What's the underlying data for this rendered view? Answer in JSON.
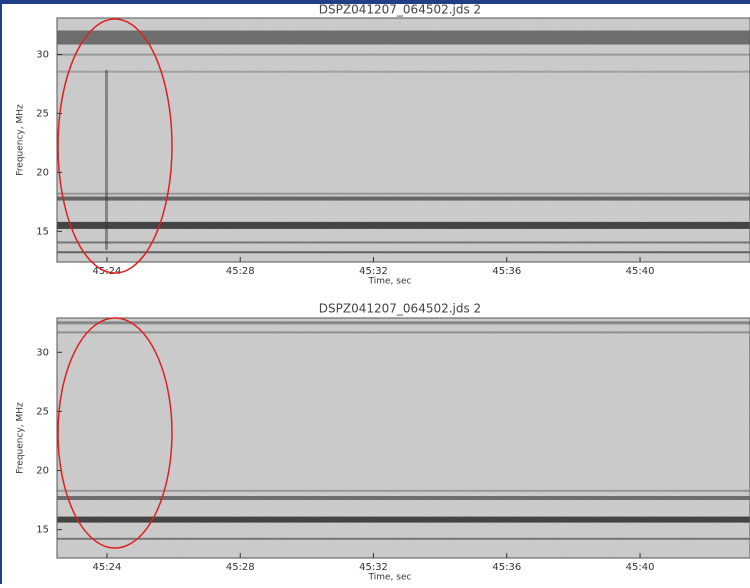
{
  "chart_data": [
    {
      "type": "spectrogram",
      "title": "DSPZ041207_064502.jds   2",
      "x_label": "Time, sec",
      "y_label": "Frequency, MHz",
      "xlim": [
        2722.5,
        2743.3
      ],
      "xticks": [
        {
          "value": 2724,
          "label": "45:24"
        },
        {
          "value": 2728,
          "label": "45:28"
        },
        {
          "value": 2732,
          "label": "45:32"
        },
        {
          "value": 2736,
          "label": "45:36"
        },
        {
          "value": 2740,
          "label": "45:40"
        }
      ],
      "ylim": [
        12.4,
        33.1
      ],
      "yticks": [
        15,
        20,
        25,
        30
      ]
    },
    {
      "type": "spectrogram",
      "title": "DSPZ041207_064502.jds   2",
      "x_label": "Time, sec",
      "y_label": "Frequency, MHz",
      "xlim": [
        2722.5,
        2743.3
      ],
      "xticks": [
        {
          "value": 2724,
          "label": "45:24"
        },
        {
          "value": 2728,
          "label": "45:28"
        },
        {
          "value": 2732,
          "label": "45:32"
        },
        {
          "value": 2736,
          "label": "45:36"
        },
        {
          "value": 2740,
          "label": "45:40"
        }
      ],
      "ylim": [
        12.6,
        32.9
      ],
      "yticks": [
        15,
        20,
        25,
        30
      ]
    }
  ]
}
